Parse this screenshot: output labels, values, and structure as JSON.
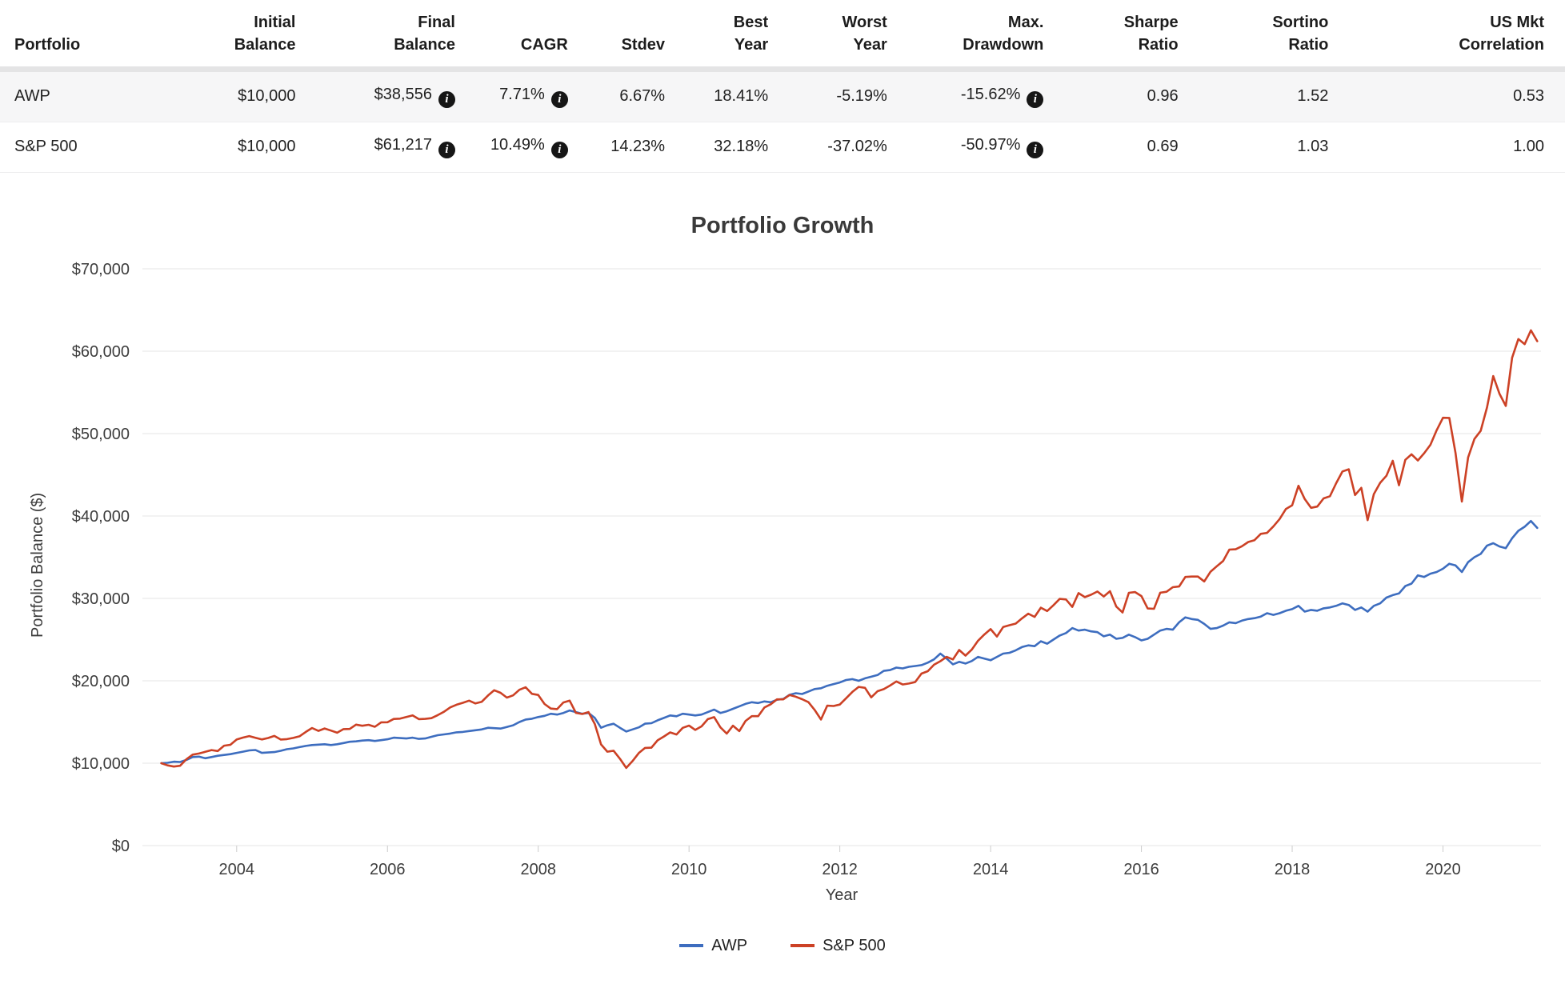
{
  "icons": {
    "info": "i"
  },
  "table": {
    "columns": [
      {
        "id": "portfolio",
        "lines": [
          "Portfolio"
        ],
        "align": "left"
      },
      {
        "id": "initial-balance",
        "lines": [
          "Initial",
          "Balance"
        ]
      },
      {
        "id": "final-balance",
        "lines": [
          "Final",
          "Balance"
        ]
      },
      {
        "id": "cagr",
        "lines": [
          "CAGR"
        ]
      },
      {
        "id": "stdev",
        "lines": [
          "Stdev"
        ]
      },
      {
        "id": "best-year",
        "lines": [
          "Best",
          "Year"
        ]
      },
      {
        "id": "worst-year",
        "lines": [
          "Worst",
          "Year"
        ]
      },
      {
        "id": "max-drawdown",
        "lines": [
          "Max.",
          "Drawdown"
        ]
      },
      {
        "id": "sharpe-ratio",
        "lines": [
          "Sharpe",
          "Ratio"
        ]
      },
      {
        "id": "sortino-ratio",
        "lines": [
          "Sortino",
          "Ratio"
        ]
      },
      {
        "id": "us-mkt-correlation",
        "lines": [
          "US Mkt",
          "Correlation"
        ]
      }
    ],
    "rows": [
      {
        "id": "awp",
        "cells": [
          {
            "text": "AWP"
          },
          {
            "text": "$10,000"
          },
          {
            "text": "$38,556",
            "info": true
          },
          {
            "text": "7.71%",
            "info": true
          },
          {
            "text": "6.67%"
          },
          {
            "text": "18.41%"
          },
          {
            "text": "-5.19%"
          },
          {
            "text": "-15.62%",
            "info": true
          },
          {
            "text": "0.96"
          },
          {
            "text": "1.52"
          },
          {
            "text": "0.53"
          }
        ]
      },
      {
        "id": "sp500",
        "cells": [
          {
            "text": "S&P 500"
          },
          {
            "text": "$10,000"
          },
          {
            "text": "$61,217",
            "info": true
          },
          {
            "text": "10.49%",
            "info": true
          },
          {
            "text": "14.23%"
          },
          {
            "text": "32.18%"
          },
          {
            "text": "-37.02%"
          },
          {
            "text": "-50.97%",
            "info": true
          },
          {
            "text": "0.69"
          },
          {
            "text": "1.03"
          },
          {
            "text": "1.00"
          }
        ]
      }
    ]
  },
  "chart_data": {
    "type": "line",
    "title": "Portfolio Growth",
    "xlabel": "Year",
    "ylabel": "Portfolio Balance ($)",
    "xlim": [
      2002.75,
      2021.3
    ],
    "ylim": [
      0,
      70000
    ],
    "y_ticks": [
      0,
      10000,
      20000,
      30000,
      40000,
      50000,
      60000,
      70000
    ],
    "x_ticks": [
      2004,
      2006,
      2008,
      2010,
      2012,
      2014,
      2016,
      2018,
      2020
    ],
    "grid": "horizontal",
    "legend_position": "bottom",
    "x_start": 2003.0,
    "x_step_years": 0.0833333,
    "series": [
      {
        "id": "awp",
        "name": "AWP",
        "color": "#3d6dbf",
        "values": [
          10000,
          10050,
          10180,
          10150,
          10400,
          10750,
          10800,
          10600,
          10750,
          10900,
          11000,
          11100,
          11250,
          11400,
          11550,
          11600,
          11250,
          11300,
          11350,
          11500,
          11700,
          11800,
          11950,
          12100,
          12200,
          12250,
          12300,
          12200,
          12300,
          12450,
          12600,
          12650,
          12750,
          12800,
          12700,
          12800,
          12900,
          13100,
          13050,
          13000,
          13100,
          12950,
          13000,
          13200,
          13400,
          13500,
          13600,
          13750,
          13800,
          13900,
          14000,
          14100,
          14300,
          14250,
          14200,
          14400,
          14600,
          15000,
          15300,
          15400,
          15600,
          15750,
          16000,
          15900,
          16100,
          16400,
          16200,
          16000,
          16100,
          15500,
          14300,
          14600,
          14790,
          14300,
          13840,
          14100,
          14350,
          14800,
          14850,
          15200,
          15500,
          15800,
          15700,
          16000,
          15900,
          15800,
          15900,
          16200,
          16500,
          16100,
          16300,
          16600,
          16900,
          17200,
          17400,
          17300,
          17500,
          17400,
          17700,
          17800,
          18300,
          18500,
          18400,
          18700,
          19000,
          19100,
          19400,
          19600,
          19800,
          20100,
          20200,
          20000,
          20300,
          20500,
          20700,
          21200,
          21300,
          21600,
          21500,
          21700,
          21800,
          21900,
          22200,
          22600,
          23300,
          22700,
          22000,
          22300,
          22100,
          22400,
          22900,
          22700,
          22500,
          22900,
          23300,
          23400,
          23700,
          24100,
          24300,
          24200,
          24800,
          24500,
          25000,
          25500,
          25800,
          26400,
          26100,
          26200,
          26000,
          25900,
          25400,
          25600,
          25100,
          25200,
          25600,
          25300,
          24900,
          25100,
          25600,
          26100,
          26300,
          26200,
          27100,
          27700,
          27500,
          27400,
          26900,
          26300,
          26400,
          26700,
          27100,
          27000,
          27300,
          27500,
          27600,
          27800,
          28200,
          28000,
          28200,
          28500,
          28700,
          29100,
          28400,
          28600,
          28500,
          28800,
          28900,
          29100,
          29400,
          29200,
          28600,
          28900,
          28400,
          29100,
          29400,
          30100,
          30400,
          30600,
          31500,
          31800,
          32800,
          32600,
          33000,
          33200,
          33600,
          34200,
          34000,
          33200,
          34400,
          35000,
          35400,
          36400,
          36700,
          36300,
          36100,
          37300,
          38200,
          38700,
          39400,
          38556
        ]
      },
      {
        "id": "sp500",
        "name": "S&P 500",
        "color": "#cc4125",
        "values": [
          10000,
          9738,
          9592,
          9685,
          10483,
          11036,
          11177,
          11374,
          11596,
          11473,
          12122,
          12229,
          12870,
          13106,
          13288,
          13088,
          12882,
          13059,
          13313,
          12872,
          12924,
          13064,
          13264,
          13800,
          14270,
          13922,
          14215,
          13963,
          13698,
          14134,
          14154,
          14680,
          14546,
          14664,
          14419,
          14965,
          14970,
          15366,
          15408,
          15600,
          15809,
          15354,
          15375,
          15470,
          15838,
          16246,
          16775,
          17094,
          17334,
          17596,
          17252,
          17445,
          18217,
          18853,
          18540,
          17965,
          18234,
          18916,
          19217,
          18413,
          18286,
          17189,
          16631,
          16559,
          17365,
          17590,
          16107,
          15971,
          16203,
          14759,
          12280,
          11398,
          11519,
          10548,
          9425,
          10250,
          11231,
          11859,
          11882,
          12781,
          13243,
          13737,
          13482,
          14291,
          14567,
          14043,
          14477,
          15351,
          15593,
          14348,
          13597,
          14549,
          13892,
          15132,
          15708,
          15709,
          16759,
          17156,
          17744,
          17751,
          18276,
          18069,
          17768,
          17407,
          16462,
          15305,
          16977,
          16939,
          17112,
          17879,
          18652,
          19266,
          19145,
          17994,
          18735,
          18995,
          19423,
          19925,
          19557,
          19670,
          19850,
          20878,
          21161,
          21954,
          22377,
          22900,
          22593,
          23742,
          23054,
          23776,
          24868,
          25625,
          26273,
          25365,
          26525,
          26748,
          26946,
          27579,
          28149,
          27760,
          28870,
          28466,
          29161,
          29945,
          29870,
          28973,
          30637,
          30153,
          30442,
          30833,
          30236,
          30869,
          29008,
          28290,
          30677,
          30768,
          30283,
          28780,
          28741,
          30691,
          30810,
          31363,
          31444,
          32603,
          32649,
          32655,
          32059,
          33246,
          33903,
          34546,
          35918,
          35960,
          36329,
          36840,
          37070,
          37832,
          37948,
          38731,
          39635,
          40850,
          41305,
          43670,
          42060,
          40991,
          41148,
          42139,
          42398,
          43976,
          45409,
          45667,
          42546,
          43414,
          39494,
          42658,
          44028,
          44884,
          46701,
          43733,
          46815,
          47488,
          46735,
          47609,
          48640,
          50406,
          51927,
          51906,
          47634,
          41750,
          47102,
          49345,
          50326,
          53164,
          56985,
          54820,
          53362,
          59203,
          61479,
          60858,
          62537,
          61217
        ]
      }
    ]
  }
}
